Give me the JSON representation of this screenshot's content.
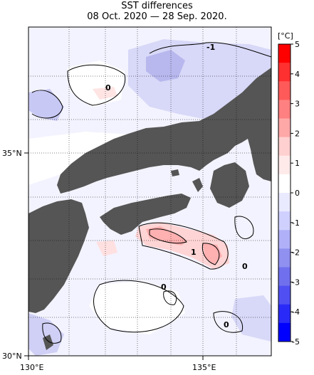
{
  "title": "SST differences",
  "subtitle": "08 Oct. 2020 — 28 Sep. 2020.",
  "axes": {
    "x_ticks": [
      "130°E",
      "135°E"
    ],
    "y_ticks": [
      "35°N",
      "30°N"
    ]
  },
  "colorbar": {
    "unit": "[°C]",
    "labels": [
      "5",
      "4",
      "3",
      "2",
      "1",
      "0",
      "-1",
      "-2",
      "-3",
      "-4",
      "-5"
    ],
    "colors": [
      "#ff0000",
      "#ff3030",
      "#ff5a5a",
      "#ff8080",
      "#ffa8a8",
      "#ffd0d0",
      "#ffeaea",
      "#ffffff",
      "#eaeaff",
      "#d0d0ff",
      "#b0b0f8",
      "#9090f0",
      "#7070ee",
      "#5050f2",
      "#2a2af8",
      "#0000ff"
    ]
  },
  "contour_labels": [
    "-1",
    "0",
    "1",
    "0",
    "0",
    "0"
  ],
  "colors": {
    "land": "#555555",
    "frame": "#000000"
  }
}
